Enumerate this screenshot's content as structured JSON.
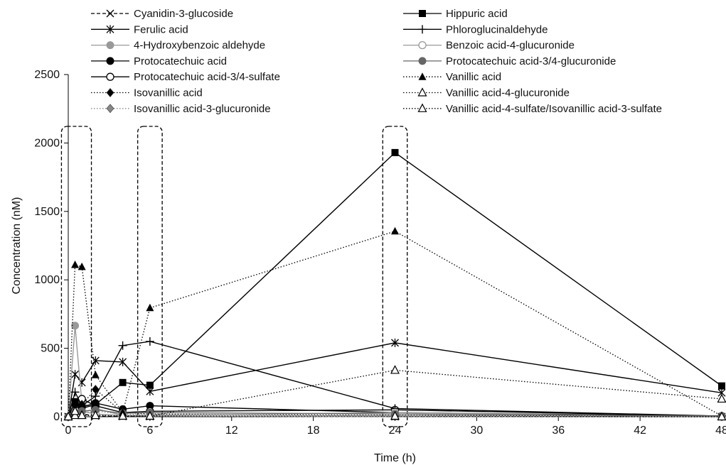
{
  "chart_data": {
    "type": "line",
    "xlabel": "Time (h)",
    "ylabel": "Concentration (nM)",
    "xlim": [
      0,
      48
    ],
    "ylim": [
      0,
      2500
    ],
    "xticks": [
      0,
      6,
      12,
      18,
      24,
      30,
      36,
      42,
      48
    ],
    "yticks": [
      0,
      500,
      1000,
      1500,
      2000,
      2500
    ],
    "grid": false,
    "legend_position": "top",
    "highlight_windows": [
      {
        "from": -0.5,
        "to": 1.7
      },
      {
        "from": 5.1,
        "to": 6.9
      },
      {
        "from": 23.1,
        "to": 24.9
      }
    ],
    "x": [
      0,
      0.5,
      1,
      2,
      4,
      6,
      24,
      48
    ],
    "series": [
      {
        "name": "Cyanidin-3-glucoside",
        "marker": "x",
        "line": "dashed",
        "color": "#000000",
        "values": [
          0,
          60,
          20,
          5,
          2,
          1,
          0,
          0
        ]
      },
      {
        "name": "Ferulic acid",
        "marker": "asterisk",
        "line": "solid",
        "color": "#000000",
        "values": [
          0,
          310,
          250,
          410,
          400,
          185,
          540,
          175
        ]
      },
      {
        "name": "4-Hydroxybenzoic aldehyde",
        "marker": "filled-circle",
        "line": "solid",
        "color": "#999999",
        "values": [
          0,
          665,
          100,
          60,
          10,
          5,
          0,
          0
        ]
      },
      {
        "name": "Protocatechuic acid",
        "marker": "filled-circle",
        "line": "solid",
        "color": "#000000",
        "values": [
          0,
          90,
          70,
          100,
          55,
          80,
          30,
          5
        ]
      },
      {
        "name": "Protocatechuic acid-3/4-sulfate",
        "marker": "open-circle",
        "line": "solid",
        "color": "#000000",
        "values": [
          0,
          50,
          130,
          80,
          30,
          40,
          50,
          5
        ]
      },
      {
        "name": "Isovanillic acid",
        "marker": "filled-diamond",
        "line": "dotted",
        "color": "#000000",
        "values": [
          0,
          80,
          90,
          200,
          30,
          20,
          10,
          5
        ]
      },
      {
        "name": "Isovanillic acid-3-glucuronide",
        "marker": "filled-diamond",
        "line": "dotted",
        "color": "#888888",
        "values": [
          0,
          20,
          30,
          40,
          20,
          15,
          5,
          0
        ]
      },
      {
        "name": "Hippuric acid",
        "marker": "filled-square",
        "line": "solid",
        "color": "#000000",
        "values": [
          0,
          110,
          60,
          90,
          250,
          230,
          1930,
          225
        ]
      },
      {
        "name": "Phloroglucinaldehyde",
        "marker": "plus",
        "line": "solid",
        "color": "#000000",
        "values": [
          0,
          180,
          80,
          150,
          520,
          550,
          60,
          5
        ]
      },
      {
        "name": "Benzoic acid-4-glucuronide",
        "marker": "open-circle",
        "line": "solid",
        "color": "#999999",
        "values": [
          0,
          30,
          40,
          20,
          10,
          10,
          30,
          0
        ]
      },
      {
        "name": "Protocatechuic acid-3/4-glucuronide",
        "marker": "filled-circle",
        "line": "solid",
        "color": "#666666",
        "values": [
          0,
          30,
          40,
          50,
          25,
          30,
          20,
          5
        ]
      },
      {
        "name": "Vanillic acid",
        "marker": "filled-triangle",
        "line": "dotted",
        "color": "#000000",
        "values": [
          0,
          1110,
          1095,
          305,
          30,
          795,
          1355,
          5
        ]
      },
      {
        "name": "Vanillic acid-4-glucuronide",
        "marker": "open-triangle",
        "line": "dotted",
        "color": "#000000",
        "values": [
          0,
          10,
          10,
          10,
          5,
          5,
          5,
          0
        ]
      },
      {
        "name": "Vanillic acid-4-sulfate/Isovanillic acid-3-sulfate",
        "marker": "open-triangle",
        "line": "dotted",
        "color": "#000000",
        "values": [
          0,
          40,
          10,
          10,
          5,
          5,
          340,
          130
        ]
      }
    ]
  }
}
